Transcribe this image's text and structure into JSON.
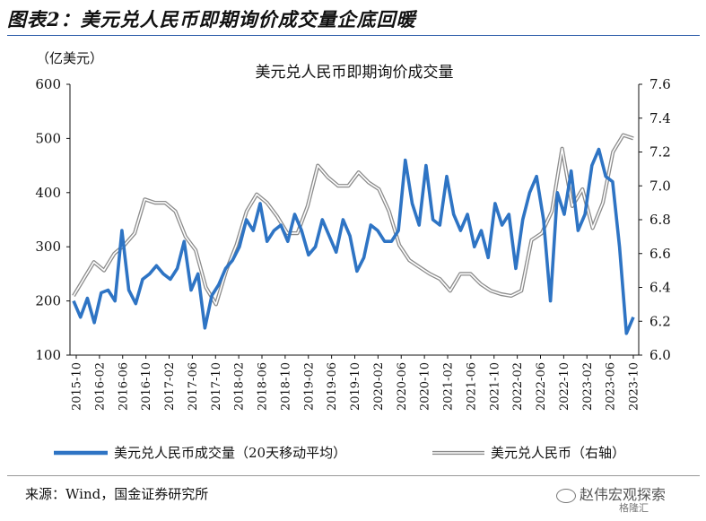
{
  "figure_title": "图表2：美元兑人民币即期询价成交量企底回暖",
  "source": "来源：Wind，国金证券研究所",
  "watermark": "赵伟宏观探索",
  "watermark_sub": "格隆汇",
  "colors": {
    "series1": "#2e74c4",
    "series2": "#b8b8b8",
    "title_rule": "#2a5aa8"
  },
  "chart_data": {
    "type": "line",
    "title": "美元兑人民币即期询价成交量",
    "left_axis_unit": "（亿美元）",
    "ylim_left": [
      100,
      600
    ],
    "yticks_left": [
      "100",
      "200",
      "300",
      "400",
      "500",
      "600"
    ],
    "ylim_right": [
      6.0,
      7.6
    ],
    "yticks_right": [
      "6.0",
      "6.2",
      "6.4",
      "6.6",
      "6.8",
      "7.0",
      "7.2",
      "7.4",
      "7.6"
    ],
    "x_ticks": [
      "2015-10",
      "2016-02",
      "2016-06",
      "2016-10",
      "2017-02",
      "2017-06",
      "2017-10",
      "2018-02",
      "2018-06",
      "2018-10",
      "2019-02",
      "2019-06",
      "2019-10",
      "2020-02",
      "2020-06",
      "2020-10",
      "2021-02",
      "2021-06",
      "2021-10",
      "2022-02",
      "2022-06",
      "2022-10",
      "2023-02",
      "2023-06",
      "2023-10"
    ],
    "legend_position": "bottom",
    "series": [
      {
        "name": "美元兑人民币成交量（20天移动平均）",
        "axis": "left",
        "values": [
          200,
          170,
          205,
          160,
          215,
          220,
          200,
          330,
          220,
          195,
          240,
          250,
          265,
          250,
          240,
          260,
          310,
          220,
          250,
          150,
          210,
          230,
          260,
          275,
          300,
          350,
          330,
          380,
          310,
          330,
          340,
          310,
          360,
          330,
          285,
          300,
          350,
          320,
          290,
          350,
          320,
          255,
          280,
          340,
          330,
          310,
          310,
          330,
          460,
          380,
          340,
          450,
          350,
          340,
          430,
          360,
          330,
          360,
          300,
          330,
          280,
          380,
          340,
          360,
          260,
          350,
          400,
          430,
          350,
          200,
          400,
          360,
          440,
          330,
          360,
          450,
          480,
          430,
          420,
          300,
          140,
          170
        ]
      },
      {
        "name": "美元兑人民币（右轴）",
        "axis": "right",
        "values": [
          6.35,
          6.45,
          6.55,
          6.5,
          6.6,
          6.65,
          6.72,
          6.92,
          6.9,
          6.9,
          6.85,
          6.7,
          6.62,
          6.4,
          6.3,
          6.5,
          6.65,
          6.85,
          6.95,
          6.9,
          6.82,
          6.72,
          6.72,
          6.88,
          7.12,
          7.05,
          7.0,
          7.0,
          7.08,
          7.02,
          6.98,
          6.85,
          6.65,
          6.56,
          6.52,
          6.48,
          6.45,
          6.38,
          6.48,
          6.48,
          6.42,
          6.38,
          6.36,
          6.35,
          6.38,
          6.68,
          6.72,
          6.85,
          7.22,
          6.88,
          6.98,
          6.75,
          6.9,
          7.2,
          7.3,
          7.28
        ]
      }
    ]
  }
}
